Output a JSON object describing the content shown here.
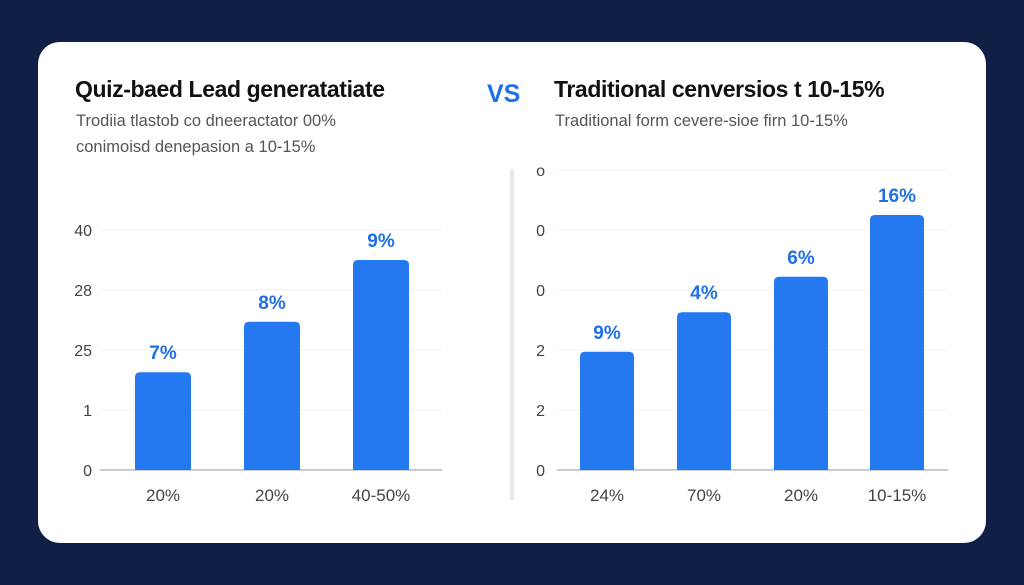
{
  "colors": {
    "background": "#0f1f45",
    "card": "#ffffff",
    "bar": "#2479f0",
    "value_label": "#1f6fe8",
    "vs": "#1f6fe8"
  },
  "left": {
    "title": "Quiz-baed Lead generatatiate",
    "subtitle_lines": [
      "Trodiia tlastob co dneeractator 00%",
      "conimoisd denepasion a 10-15%"
    ]
  },
  "vs_label": "VS",
  "right": {
    "title": "Traditional cenversios t 10-15%",
    "subtitle_lines": [
      "Traditional form cevere-sioe firn 10-15%"
    ]
  },
  "chart_data": [
    {
      "type": "bar",
      "title": "Quiz-baed Lead generatatiate",
      "y_tick_labels": [
        "0",
        "1",
        "25",
        "28",
        "40"
      ],
      "grid": true,
      "categories": [
        "20%",
        "20%",
        "40-50%"
      ],
      "data_labels": [
        "7%",
        "8%",
        "9%"
      ],
      "values_in_tick_steps": [
        1.63,
        2.47,
        3.5
      ]
    },
    {
      "type": "bar",
      "title": "Traditional cenversios t 10-15%",
      "y_tick_labels": [
        "0",
        "2",
        "2",
        "0",
        "0",
        "o"
      ],
      "grid": true,
      "categories": [
        "24%",
        "70%",
        "20%",
        "10-15%"
      ],
      "data_labels": [
        "9%",
        "4%",
        "6%",
        "16%"
      ],
      "values_in_tick_steps": [
        1.97,
        2.63,
        3.22,
        4.25
      ]
    }
  ]
}
